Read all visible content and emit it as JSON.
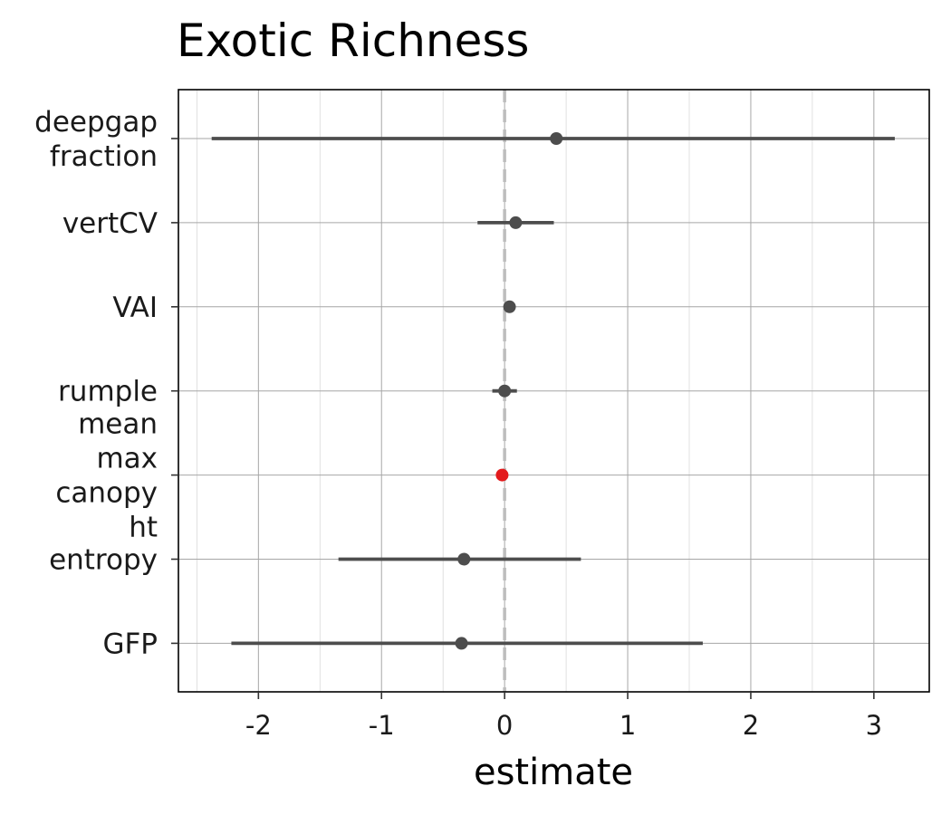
{
  "chart_data": {
    "type": "scatter",
    "subtype": "coefficient-plot",
    "title": "Exotic Richness",
    "xlabel": "estimate",
    "ylabel": "",
    "xlim": [
      -2.65,
      3.45
    ],
    "x_ticks": [
      "-2",
      "-1",
      "0",
      "1",
      "2",
      "3"
    ],
    "x_tick_values": [
      -2,
      -1,
      0,
      1,
      2,
      3
    ],
    "reference_line": {
      "x": 0,
      "style": "dashed"
    },
    "grid": true,
    "legend": "none",
    "terms": [
      {
        "label": [
          "deepgap",
          "fraction"
        ],
        "estimate": 0.42,
        "low": -2.38,
        "high": 3.17,
        "color": "#4d4d4d"
      },
      {
        "label": [
          "vertCV"
        ],
        "estimate": 0.09,
        "low": -0.22,
        "high": 0.4,
        "color": "#4d4d4d"
      },
      {
        "label": [
          "VAI"
        ],
        "estimate": 0.04,
        "low": 0.02,
        "high": 0.06,
        "color": "#4d4d4d"
      },
      {
        "label": [
          "rumple"
        ],
        "estimate": 0.0,
        "low": -0.1,
        "high": 0.1,
        "color": "#4d4d4d"
      },
      {
        "label": [
          "mean",
          "max",
          "canopy",
          "ht"
        ],
        "estimate": -0.02,
        "low": -0.03,
        "high": -0.01,
        "color": "#e31a1c"
      },
      {
        "label": [
          "entropy"
        ],
        "estimate": -0.33,
        "low": -1.35,
        "high": 0.62,
        "color": "#4d4d4d"
      },
      {
        "label": [
          "GFP"
        ],
        "estimate": -0.35,
        "low": -2.22,
        "high": 1.61,
        "color": "#4d4d4d"
      }
    ]
  }
}
